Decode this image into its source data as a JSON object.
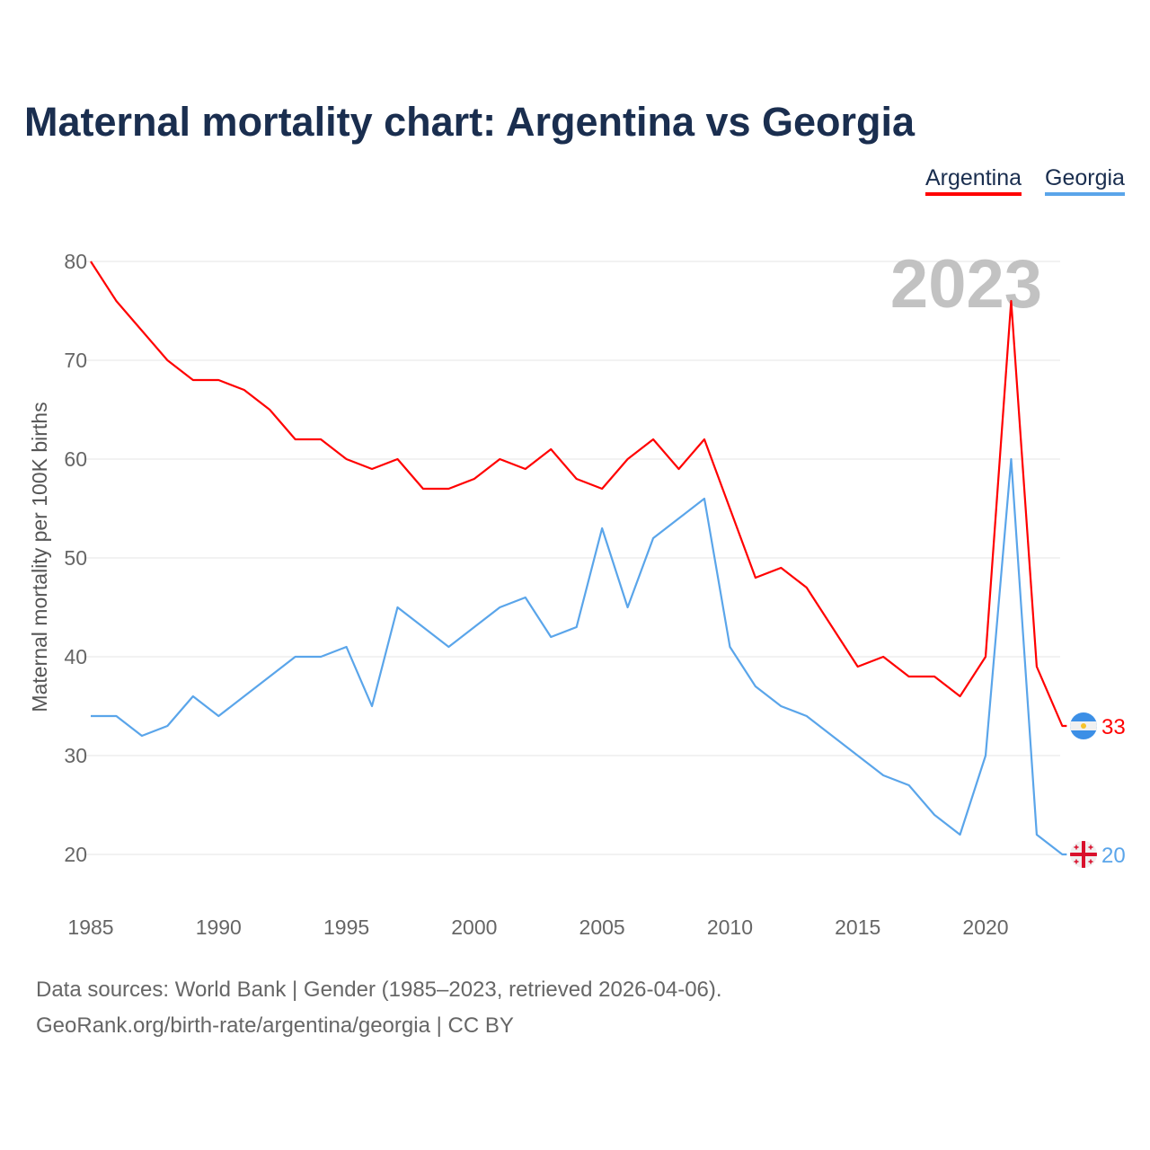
{
  "title": "Maternal mortality chart: Argentina vs Georgia",
  "footer": {
    "line1": "Data sources: World Bank | Gender (1985–2023, retrieved 2026-04-06).",
    "line2": "GeoRank.org/birth-rate/argentina/georgia | CC BY"
  },
  "chart_data": {
    "type": "line",
    "title": "Maternal mortality chart: Argentina vs Georgia",
    "xlabel": "",
    "ylabel": "Maternal mortality per 100K births",
    "year_label": "2023",
    "xlim": [
      1985,
      2023
    ],
    "ylim": [
      15,
      82
    ],
    "xticks": [
      "1985",
      "1990",
      "1995",
      "2000",
      "2005",
      "2010",
      "2015",
      "2020"
    ],
    "yticks": [
      "20",
      "30",
      "40",
      "50",
      "60",
      "70",
      "80"
    ],
    "grid": true,
    "legend_position": "top-right",
    "x": [
      1985,
      1986,
      1987,
      1988,
      1989,
      1990,
      1991,
      1992,
      1993,
      1994,
      1995,
      1996,
      1997,
      1998,
      1999,
      2000,
      2001,
      2002,
      2003,
      2004,
      2005,
      2006,
      2007,
      2008,
      2009,
      2010,
      2011,
      2012,
      2013,
      2014,
      2015,
      2016,
      2017,
      2018,
      2019,
      2020,
      2021,
      2022,
      2023
    ],
    "series": [
      {
        "name": "Argentina",
        "color": "#ff0000",
        "flag": "argentina-flag",
        "end_label": "33",
        "values": [
          80,
          76,
          73,
          70,
          68,
          68,
          67,
          65,
          62,
          62,
          60,
          59,
          60,
          57,
          57,
          58,
          60,
          59,
          61,
          58,
          57,
          60,
          62,
          59,
          62,
          55,
          48,
          49,
          47,
          43,
          39,
          40,
          38,
          38,
          36,
          40,
          76,
          39,
          33
        ]
      },
      {
        "name": "Georgia",
        "color": "#5aa5ea",
        "flag": "georgia-flag",
        "end_label": "20",
        "values": [
          34,
          34,
          32,
          33,
          36,
          34,
          36,
          38,
          40,
          40,
          41,
          35,
          45,
          43,
          41,
          43,
          45,
          46,
          42,
          43,
          53,
          45,
          52,
          54,
          56,
          41,
          37,
          35,
          34,
          32,
          30,
          28,
          27,
          24,
          22,
          30,
          60,
          22,
          20
        ]
      }
    ]
  }
}
